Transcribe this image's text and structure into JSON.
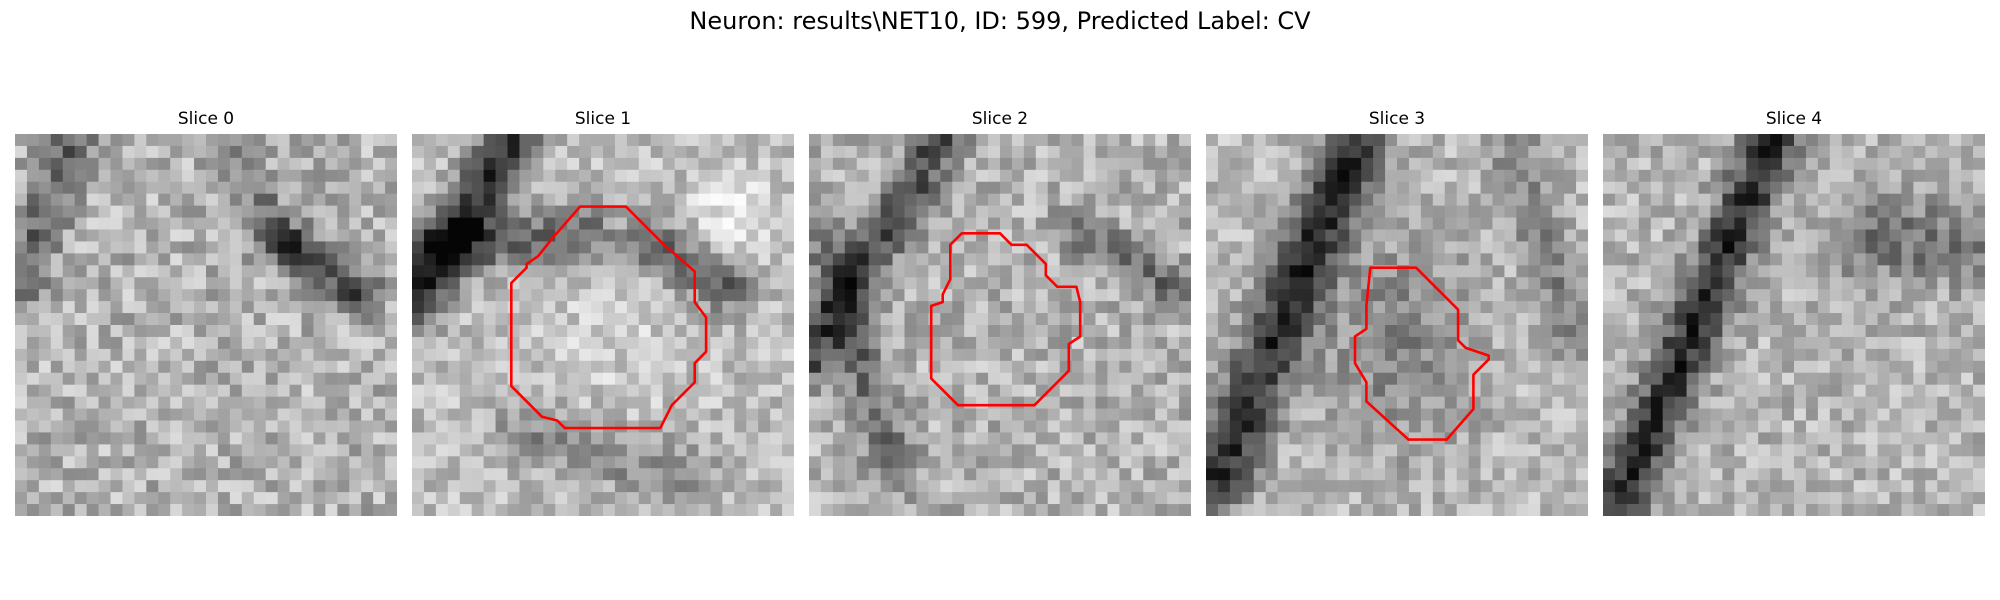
{
  "figure": {
    "title": "Neuron: results\\NET10, ID: 599, Predicted Label: CV"
  },
  "colors": {
    "contour": "#ff0000",
    "background": "#ffffff"
  },
  "panels": [
    {
      "title": "Slice 0",
      "has_contour": false
    },
    {
      "title": "Slice 1",
      "has_contour": true
    },
    {
      "title": "Slice 2",
      "has_contour": true
    },
    {
      "title": "Slice 3",
      "has_contour": true
    },
    {
      "title": "Slice 4",
      "has_contour": false
    }
  ]
}
